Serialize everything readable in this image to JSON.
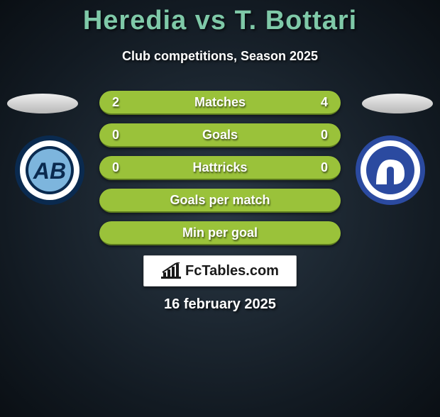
{
  "title": "Heredia vs T. Bottari",
  "subtitle": "Club competitions, Season 2025",
  "date": "16 february 2025",
  "brand": "FcTables.com",
  "club_left": {
    "ring_outer": "#0a2a4f",
    "ring_inner": "#ffffff",
    "center": "#7db5dd",
    "letters": "AB",
    "letter_color": "#0a2a4f"
  },
  "club_right": {
    "ring_outer": "#2b4aa0",
    "ring_inner": "#ffffff",
    "center": "#2b4aa0",
    "monogram_color": "#ffffff"
  },
  "rows": [
    {
      "left": "2",
      "label": "Matches",
      "right": "4",
      "left_bg": "#9ac23a",
      "right_bg": "#9ac23a",
      "left_w": 0.35,
      "right_w": 0.65
    },
    {
      "left": "0",
      "label": "Goals",
      "right": "0",
      "left_bg": "#9ac23a",
      "right_bg": "#9ac23a",
      "left_w": 0.5,
      "right_w": 0.5
    },
    {
      "left": "0",
      "label": "Hattricks",
      "right": "0",
      "left_bg": "#9ac23a",
      "right_bg": "#9ac23a",
      "left_w": 0.5,
      "right_w": 0.5
    },
    {
      "left": "",
      "label": "Goals per match",
      "right": "",
      "left_bg": "#9ac23a",
      "right_bg": "#9ac23a",
      "left_w": 0.5,
      "right_w": 0.5
    },
    {
      "left": "",
      "label": "Min per goal",
      "right": "",
      "left_bg": "#9ac23a",
      "right_bg": "#9ac23a",
      "left_w": 0.5,
      "right_w": 0.5
    }
  ],
  "style": {
    "row_border": "#5c7a1e"
  }
}
